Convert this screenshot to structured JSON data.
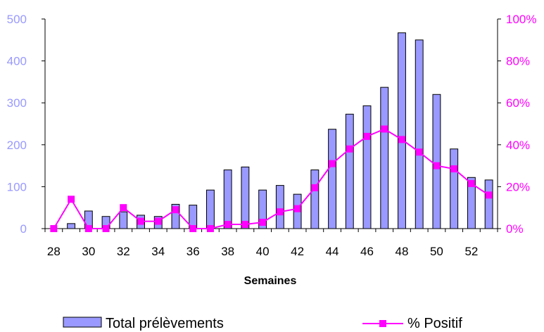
{
  "chart_data": {
    "type": "bar+line",
    "xlabel": "Semaines",
    "weeks": [
      28,
      29,
      30,
      31,
      32,
      33,
      34,
      35,
      36,
      37,
      38,
      39,
      40,
      41,
      42,
      43,
      44,
      45,
      46,
      47,
      48,
      49,
      50,
      51,
      52,
      53
    ],
    "x_tick_labels": [
      "28",
      "30",
      "32",
      "34",
      "36",
      "38",
      "40",
      "42",
      "44",
      "46",
      "48",
      "50",
      "52"
    ],
    "series": [
      {
        "name": "Total prélèvements",
        "type": "bar",
        "axis": "left",
        "color": "#9999ff",
        "values": [
          0,
          12,
          42,
          29,
          40,
          32,
          29,
          58,
          56,
          92,
          140,
          147,
          92,
          103,
          82,
          140,
          237,
          273,
          293,
          337,
          467,
          450,
          320,
          190,
          122,
          116
        ]
      },
      {
        "name": "% Positif",
        "type": "line",
        "axis": "right",
        "color": "#ff00ff",
        "values": [
          0,
          14,
          0,
          0,
          10,
          3.5,
          3.5,
          9,
          0,
          0,
          2,
          2,
          3,
          8,
          9.5,
          19.5,
          31,
          38,
          44,
          47.5,
          42.5,
          36.5,
          30,
          28.5,
          21.5,
          16
        ]
      }
    ],
    "y_left": {
      "min": 0,
      "max": 500,
      "ticks": [
        "0",
        "100",
        "200",
        "300",
        "400",
        "500"
      ],
      "color": "#9999ff"
    },
    "y_right": {
      "min": 0,
      "max": 100,
      "ticks": [
        "0%",
        "20%",
        "40%",
        "60%",
        "80%",
        "100%"
      ],
      "color": "#ff00ff"
    },
    "legend": {
      "position": "bottom",
      "items": [
        "Total prélèvements",
        "% Positif"
      ]
    },
    "grid": false
  }
}
